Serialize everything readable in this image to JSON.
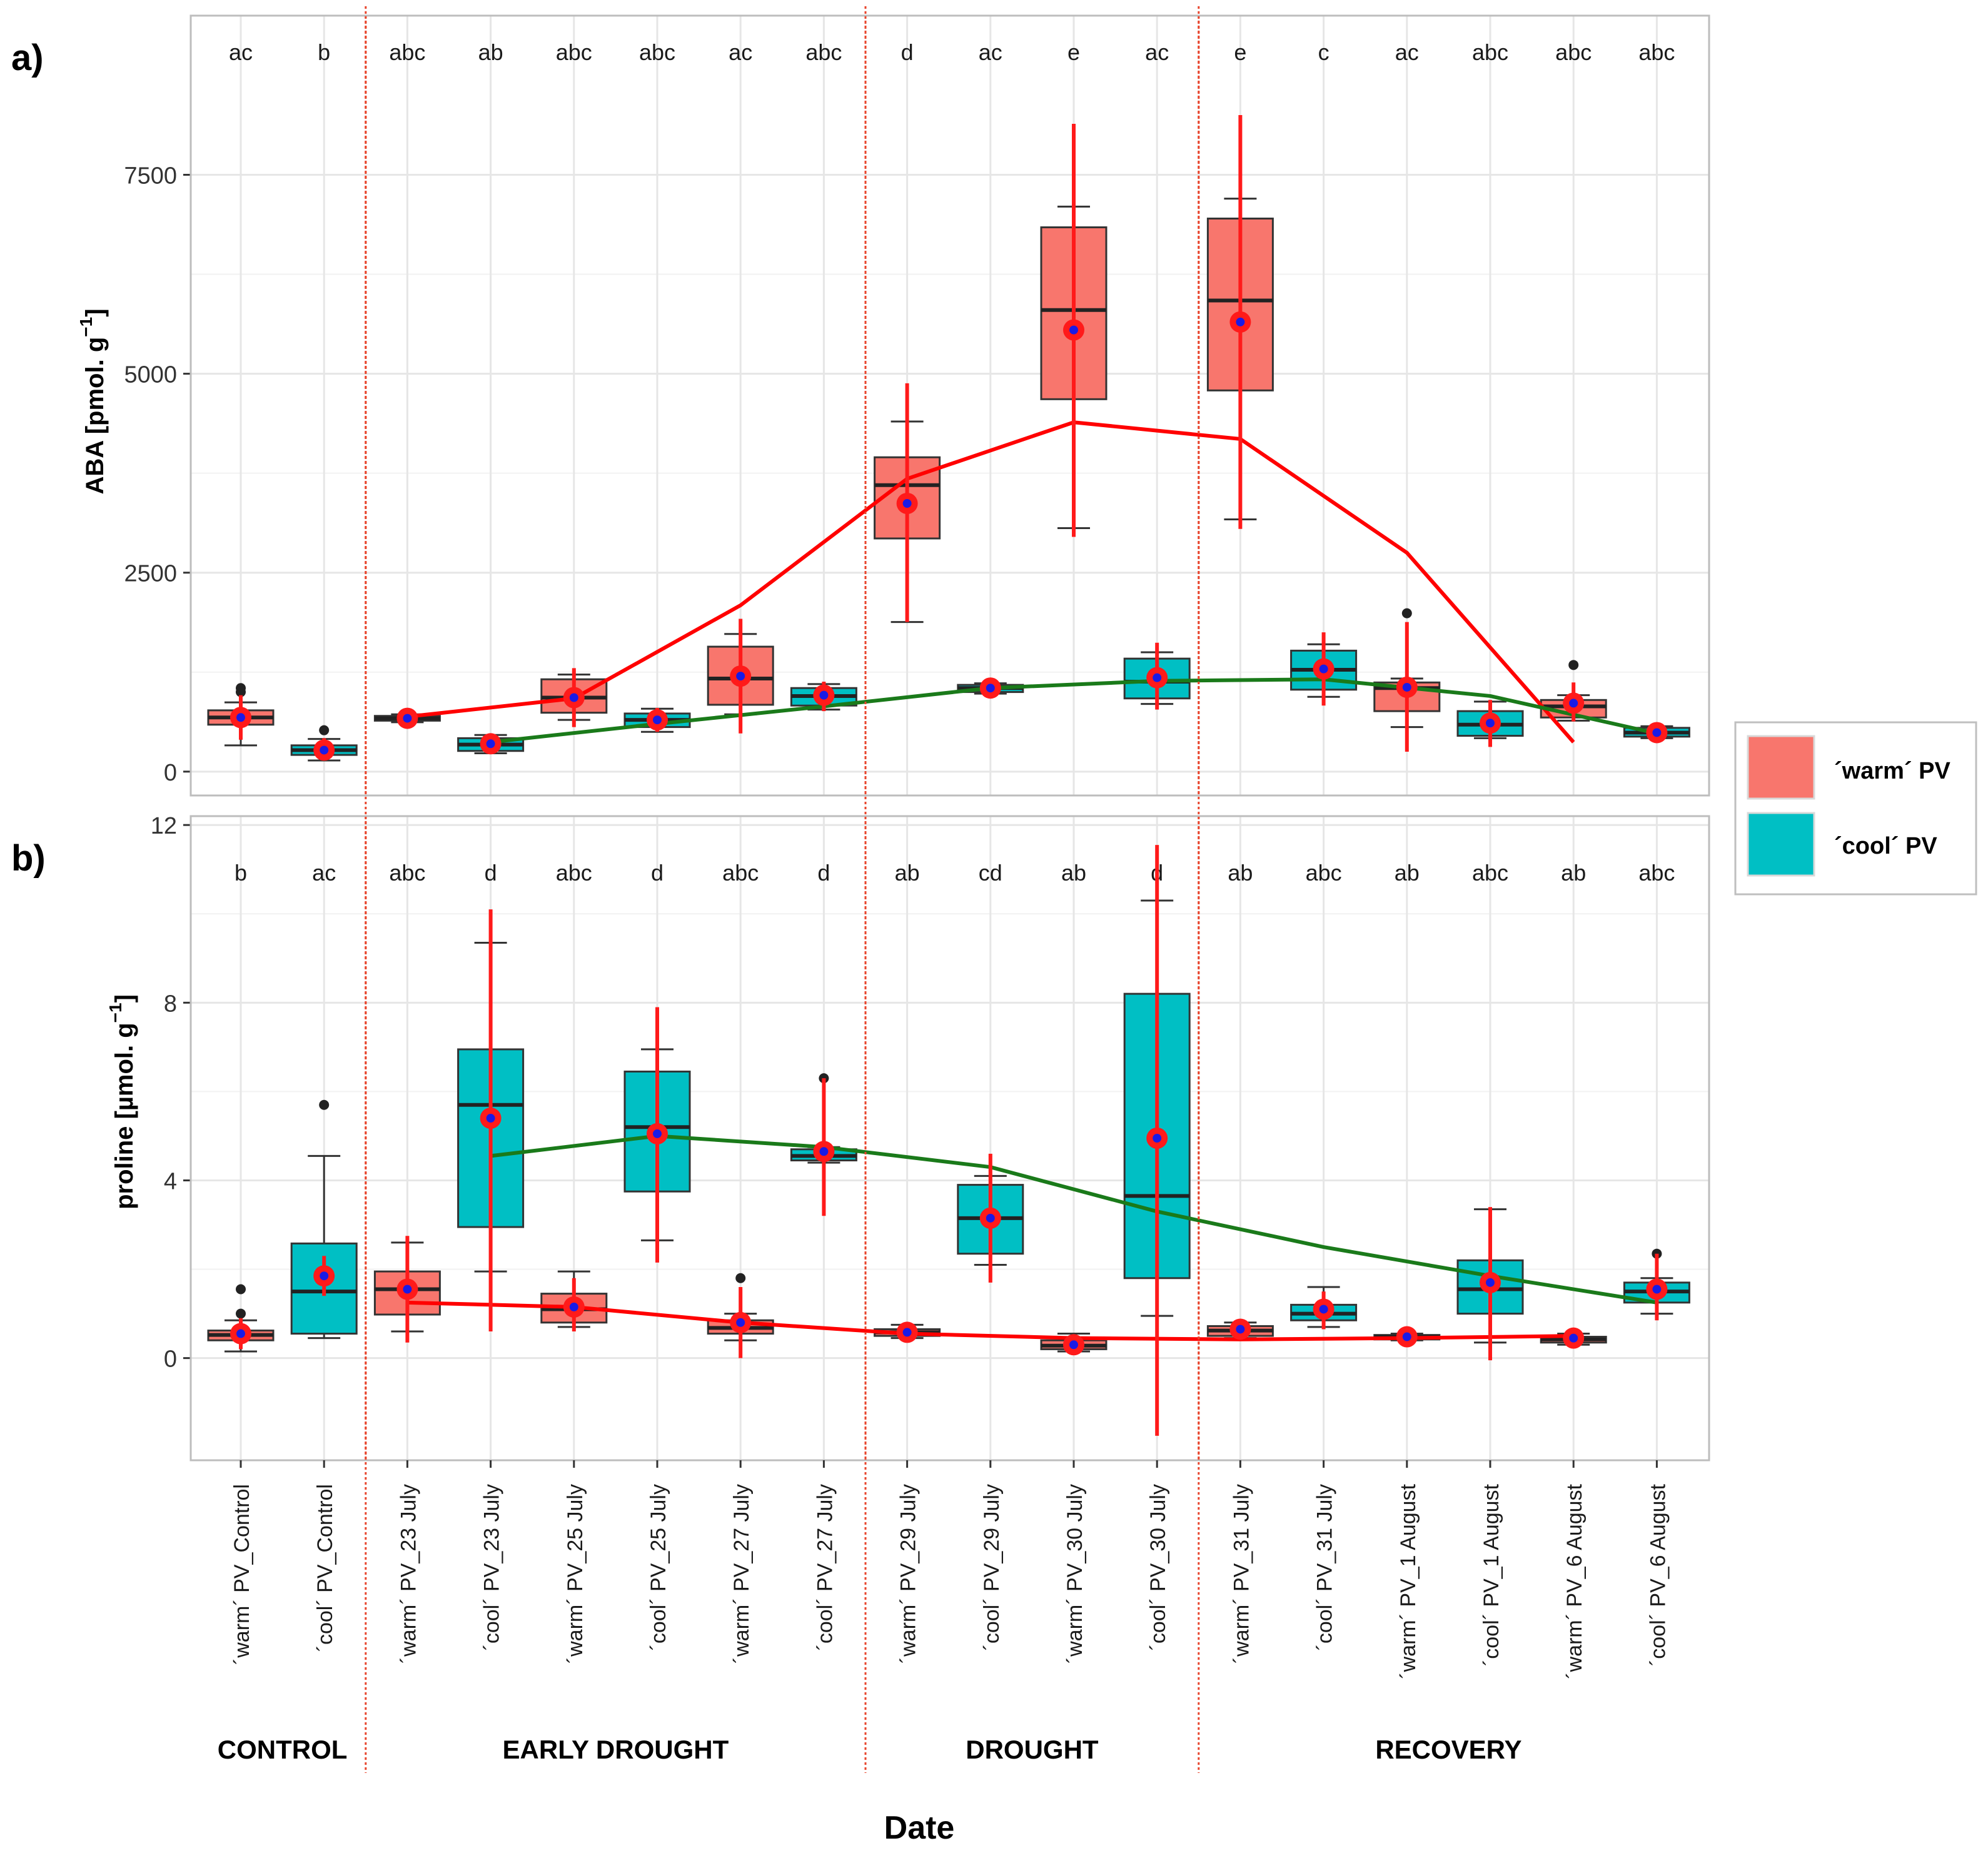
{
  "figure": {
    "xlabel": "Date",
    "colors": {
      "warm": "#F8766D",
      "cool": "#00BFC4",
      "mean_line_warm": "#FF0000",
      "mean_line_cool": "#1A7A1A",
      "errorbar": "#FF1A1A",
      "mean_point": "#1A1AE6",
      "phase_divider": "#E8462E",
      "grid": "#E6E6E6",
      "panel_border": "#BDBDBD"
    },
    "legend": {
      "items": [
        {
          "key": "warm",
          "label": "´warm´ PV"
        },
        {
          "key": "cool",
          "label": "´cool´ PV"
        }
      ]
    },
    "categories": [
      "´warm´ PV_Control",
      "´cool´ PV_Control",
      "´warm´ PV_23 July",
      "´cool´ PV_23 July",
      "´warm´ PV_25 July",
      "´cool´ PV_25 July",
      "´warm´ PV_27 July",
      "´cool´ PV_27 July",
      "´warm´ PV_29 July",
      "´cool´ PV_29 July",
      "´warm´ PV_30 July",
      "´cool´ PV_30 July",
      "´warm´ PV_31 July",
      "´cool´ PV_31 July",
      "´warm´ PV_1 August",
      "´cool´ PV_1 August",
      "´warm´ PV_6 August",
      "´cool´ PV_6 August"
    ],
    "phases": [
      {
        "label": "CONTROL",
        "from": 0,
        "to": 1
      },
      {
        "label": "EARLY DROUGHT",
        "from": 2,
        "to": 7
      },
      {
        "label": "DROUGHT",
        "from": 8,
        "to": 11
      },
      {
        "label": "RECOVERY",
        "from": 12,
        "to": 17
      }
    ]
  },
  "chart_data": [
    {
      "type": "box",
      "panel_label": "a)",
      "ylabel": "ABA [pmol. g",
      "ylabel_sup": "−1",
      "ylabel_close": "]",
      "ylim": [
        -300,
        9500
      ],
      "yticks": [
        0,
        2500,
        5000,
        7500
      ],
      "ytick_labels": [
        "0",
        "2500",
        "5000",
        "7500"
      ],
      "letters": [
        "ac",
        "b",
        "abc",
        "ab",
        "abc",
        "abc",
        "ac",
        "abc",
        "d",
        "ac",
        "e",
        "ac",
        "e",
        "c",
        "ac",
        "abc",
        "abc",
        "abc"
      ],
      "groups": [
        "warm",
        "cool",
        "warm",
        "cool",
        "warm",
        "cool",
        "warm",
        "cool",
        "warm",
        "cool",
        "warm",
        "cool",
        "warm",
        "cool",
        "warm",
        "cool",
        "warm",
        "cool"
      ],
      "boxes": [
        {
          "wlo": 330,
          "q1": 590,
          "med": 680,
          "q3": 770,
          "whi": 870,
          "mean": 680,
          "elo": 400,
          "ehi": 960,
          "out": [
            1000,
            1050
          ]
        },
        {
          "wlo": 140,
          "q1": 210,
          "med": 270,
          "q3": 330,
          "whi": 410,
          "mean": 270,
          "elo": 140,
          "ehi": 420,
          "out": [
            520
          ]
        },
        {
          "wlo": 620,
          "q1": 640,
          "med": 670,
          "q3": 700,
          "whi": 720,
          "mean": 670,
          "elo": 620,
          "ehi": 720,
          "out": []
        },
        {
          "wlo": 230,
          "q1": 260,
          "med": 340,
          "q3": 420,
          "whi": 460,
          "mean": 350,
          "elo": 240,
          "ehi": 460,
          "out": []
        },
        {
          "wlo": 650,
          "q1": 740,
          "med": 930,
          "q3": 1160,
          "whi": 1220,
          "mean": 930,
          "elo": 560,
          "ehi": 1300,
          "out": []
        },
        {
          "wlo": 500,
          "q1": 560,
          "med": 650,
          "q3": 730,
          "whi": 790,
          "mean": 650,
          "elo": 500,
          "ehi": 800,
          "out": []
        },
        {
          "wlo": 720,
          "q1": 840,
          "med": 1170,
          "q3": 1570,
          "whi": 1730,
          "mean": 1200,
          "elo": 480,
          "ehi": 1920,
          "out": []
        },
        {
          "wlo": 780,
          "q1": 830,
          "med": 950,
          "q3": 1050,
          "whi": 1100,
          "mean": 960,
          "elo": 760,
          "ehi": 1130,
          "out": []
        },
        {
          "wlo": 1880,
          "q1": 2930,
          "med": 3600,
          "q3": 3950,
          "whi": 4400,
          "mean": 3370,
          "elo": 1880,
          "ehi": 4880,
          "out": []
        },
        {
          "wlo": 980,
          "q1": 1000,
          "med": 1050,
          "q3": 1090,
          "whi": 1110,
          "mean": 1050,
          "elo": 990,
          "ehi": 1110,
          "out": []
        },
        {
          "wlo": 3060,
          "q1": 4680,
          "med": 5800,
          "q3": 6840,
          "whi": 7100,
          "mean": 5550,
          "elo": 2950,
          "ehi": 8140,
          "out": []
        },
        {
          "wlo": 850,
          "q1": 920,
          "med": 1130,
          "q3": 1420,
          "whi": 1500,
          "mean": 1180,
          "elo": 780,
          "ehi": 1620,
          "out": []
        },
        {
          "wlo": 3170,
          "q1": 4790,
          "med": 5920,
          "q3": 6950,
          "whi": 7200,
          "mean": 5650,
          "elo": 3050,
          "ehi": 8250,
          "out": []
        },
        {
          "wlo": 940,
          "q1": 1030,
          "med": 1280,
          "q3": 1520,
          "whi": 1600,
          "mean": 1290,
          "elo": 830,
          "ehi": 1750,
          "out": []
        },
        {
          "wlo": 560,
          "q1": 760,
          "med": 1050,
          "q3": 1120,
          "whi": 1170,
          "mean": 1060,
          "elo": 250,
          "ehi": 1880,
          "out": [
            1990
          ]
        },
        {
          "wlo": 420,
          "q1": 450,
          "med": 590,
          "q3": 760,
          "whi": 880,
          "mean": 610,
          "elo": 310,
          "ehi": 900,
          "out": []
        },
        {
          "wlo": 640,
          "q1": 680,
          "med": 820,
          "q3": 900,
          "whi": 960,
          "mean": 860,
          "elo": 630,
          "ehi": 1120,
          "out": [
            1340
          ]
        },
        {
          "wlo": 420,
          "q1": 440,
          "med": 490,
          "q3": 550,
          "whi": 570,
          "mean": 490,
          "elo": 430,
          "ehi": 560,
          "out": []
        }
      ],
      "mean_lines": {
        "warm": {
          "x": [
            2,
            4,
            6,
            8,
            10,
            12,
            14,
            16
          ],
          "y": [
            690,
            920,
            2090,
            3680,
            4390,
            4180,
            2750,
            370
          ]
        },
        "cool": {
          "x": [
            3,
            5,
            7,
            9,
            11,
            13,
            15,
            17
          ],
          "y": [
            370,
            600,
            820,
            1050,
            1140,
            1160,
            950,
            480
          ]
        }
      }
    },
    {
      "type": "box",
      "panel_label": "b)",
      "ylabel": "proline [µmol. g",
      "ylabel_sup": "−1",
      "ylabel_close": "]",
      "ylim": [
        -2.3,
        12.2
      ],
      "yticks": [
        0,
        4,
        8,
        12
      ],
      "ytick_labels": [
        "0",
        "4",
        "8",
        "12"
      ],
      "letters": [
        "b",
        "ac",
        "abc",
        "d",
        "abc",
        "d",
        "abc",
        "d",
        "ab",
        "cd",
        "ab",
        "d",
        "ab",
        "abc",
        "ab",
        "abc",
        "ab",
        "abc"
      ],
      "groups": [
        "warm",
        "cool",
        "warm",
        "cool",
        "warm",
        "cool",
        "warm",
        "cool",
        "warm",
        "cool",
        "warm",
        "cool",
        "warm",
        "cool",
        "warm",
        "cool",
        "warm",
        "cool"
      ],
      "boxes": [
        {
          "wlo": 0.15,
          "q1": 0.4,
          "med": 0.52,
          "q3": 0.62,
          "whi": 0.85,
          "mean": 0.55,
          "elo": 0.2,
          "ehi": 0.9,
          "out": [
            1.0,
            1.55
          ]
        },
        {
          "wlo": 0.45,
          "q1": 0.55,
          "med": 1.5,
          "q3": 2.58,
          "whi": 4.55,
          "mean": 1.85,
          "elo": 1.4,
          "ehi": 2.3,
          "out": [
            5.7
          ]
        },
        {
          "wlo": 0.6,
          "q1": 0.98,
          "med": 1.55,
          "q3": 1.95,
          "whi": 2.6,
          "mean": 1.55,
          "elo": 0.35,
          "ehi": 2.75,
          "out": []
        },
        {
          "wlo": 1.95,
          "q1": 2.95,
          "med": 5.7,
          "q3": 6.95,
          "whi": 9.35,
          "mean": 5.4,
          "elo": 0.6,
          "ehi": 10.1,
          "out": []
        },
        {
          "wlo": 0.7,
          "q1": 0.8,
          "med": 1.1,
          "q3": 1.45,
          "whi": 1.95,
          "mean": 1.15,
          "elo": 0.6,
          "ehi": 1.8,
          "out": []
        },
        {
          "wlo": 2.65,
          "q1": 3.75,
          "med": 5.2,
          "q3": 6.45,
          "whi": 6.95,
          "mean": 5.05,
          "elo": 2.15,
          "ehi": 7.9,
          "out": []
        },
        {
          "wlo": 0.4,
          "q1": 0.55,
          "med": 0.68,
          "q3": 0.85,
          "whi": 1.0,
          "mean": 0.8,
          "elo": 0.0,
          "ehi": 1.6,
          "out": [
            1.8
          ]
        },
        {
          "wlo": 4.4,
          "q1": 4.45,
          "med": 4.55,
          "q3": 4.7,
          "whi": 4.75,
          "mean": 4.65,
          "elo": 3.2,
          "ehi": 6.3,
          "out": [
            6.3
          ]
        },
        {
          "wlo": 0.45,
          "q1": 0.5,
          "med": 0.58,
          "q3": 0.65,
          "whi": 0.75,
          "mean": 0.58,
          "elo": 0.45,
          "ehi": 0.75,
          "out": []
        },
        {
          "wlo": 2.1,
          "q1": 2.35,
          "med": 3.15,
          "q3": 3.9,
          "whi": 4.1,
          "mean": 3.15,
          "elo": 1.7,
          "ehi": 4.6,
          "out": []
        },
        {
          "wlo": 0.15,
          "q1": 0.2,
          "med": 0.28,
          "q3": 0.4,
          "whi": 0.55,
          "mean": 0.3,
          "elo": 0.15,
          "ehi": 0.5,
          "out": []
        },
        {
          "wlo": 0.95,
          "q1": 1.8,
          "med": 3.65,
          "q3": 8.2,
          "whi": 10.3,
          "mean": 4.95,
          "elo": -1.75,
          "ehi": 11.55,
          "out": []
        },
        {
          "wlo": 0.45,
          "q1": 0.5,
          "med": 0.62,
          "q3": 0.72,
          "whi": 0.8,
          "mean": 0.65,
          "elo": 0.45,
          "ehi": 0.8,
          "out": []
        },
        {
          "wlo": 0.7,
          "q1": 0.85,
          "med": 1.0,
          "q3": 1.2,
          "whi": 1.6,
          "mean": 1.1,
          "elo": 0.65,
          "ehi": 1.5,
          "out": []
        },
        {
          "wlo": 0.4,
          "q1": 0.42,
          "med": 0.48,
          "q3": 0.52,
          "whi": 0.55,
          "mean": 0.48,
          "elo": 0.4,
          "ehi": 0.55,
          "out": []
        },
        {
          "wlo": 0.35,
          "q1": 1.0,
          "med": 1.55,
          "q3": 2.2,
          "whi": 3.35,
          "mean": 1.7,
          "elo": -0.05,
          "ehi": 3.4,
          "out": []
        },
        {
          "wlo": 0.3,
          "q1": 0.35,
          "med": 0.42,
          "q3": 0.48,
          "whi": 0.55,
          "mean": 0.45,
          "elo": 0.3,
          "ehi": 0.55,
          "out": []
        },
        {
          "wlo": 1.0,
          "q1": 1.25,
          "med": 1.5,
          "q3": 1.7,
          "whi": 1.8,
          "mean": 1.55,
          "elo": 0.85,
          "ehi": 2.35,
          "out": [
            2.35
          ]
        }
      ],
      "mean_lines": {
        "warm": {
          "x": [
            2,
            4,
            6,
            8,
            10,
            12,
            14,
            16
          ],
          "y": [
            1.25,
            1.15,
            0.8,
            0.55,
            0.45,
            0.42,
            0.45,
            0.5
          ]
        },
        "cool": {
          "x": [
            3,
            5,
            7,
            9,
            11,
            13,
            15,
            17
          ],
          "y": [
            4.55,
            5.0,
            4.75,
            4.3,
            3.3,
            2.5,
            1.85,
            1.25
          ]
        }
      }
    }
  ]
}
